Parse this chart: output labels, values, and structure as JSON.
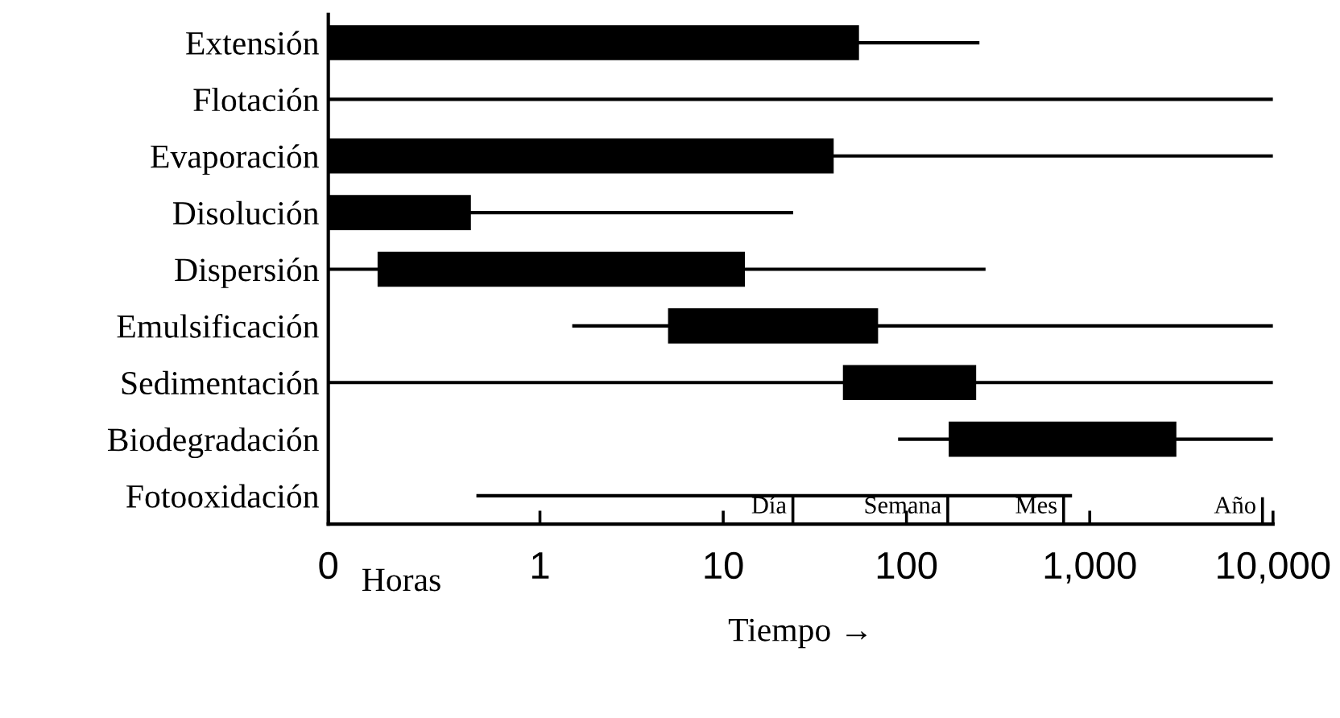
{
  "chart_data": {
    "type": "bar",
    "orientation": "horizontal",
    "log": "x",
    "categories": [
      "Extensión",
      "Flotación",
      "Evaporación",
      "Disolución",
      "Dispersión",
      "Emulsificación",
      "Sedimentación",
      "Biodegradación",
      "Fotooxidación"
    ],
    "series": [
      {
        "color": "#000000",
        "base": [
          0.07,
          0.07,
          0.07,
          0.07,
          0.07,
          1.5,
          0.07,
          90,
          0.45
        ],
        "values": [
          250,
          10000,
          10000,
          24,
          270,
          10000,
          10000,
          9910,
          800
        ]
      },
      {
        "color": "#000000",
        "base": [
          0.07,
          null,
          0.07,
          0.07,
          0.13,
          5,
          45,
          170,
          null
        ],
        "values": [
          55,
          null,
          40,
          0.35,
          13,
          65,
          195,
          2800,
          null
        ]
      }
    ],
    "xlim": [
      0.07,
      10000
    ],
    "xticks": [
      {
        "value": 0.07,
        "label": "0"
      },
      1,
      10,
      100,
      {
        "value": 1000,
        "label": "1,000"
      },
      {
        "value": 10000,
        "label": "10,000"
      }
    ],
    "xlabel": "Tiempo →",
    "annotations": [
      "Horas"
    ],
    "ref_lines": [
      {
        "axis": "x",
        "value": 24,
        "label": "Día"
      },
      {
        "axis": "x",
        "value": 168,
        "label": "Semana"
      },
      {
        "axis": "x",
        "value": 720,
        "label": "Mes"
      },
      {
        "axis": "x",
        "value": 8760,
        "label": "Año"
      }
    ],
    "grid": false,
    "legend": false
  }
}
